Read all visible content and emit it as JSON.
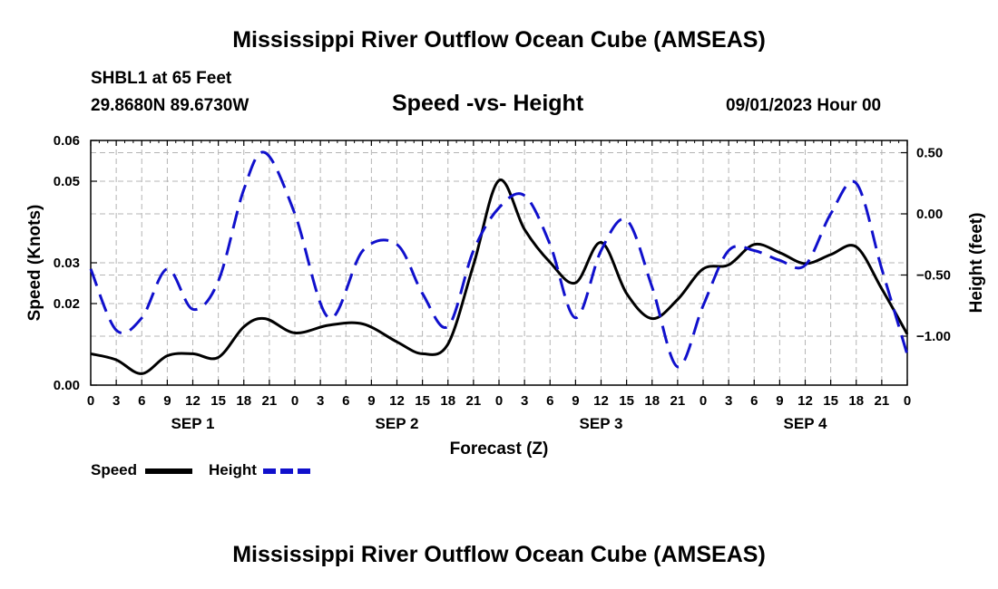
{
  "header": {
    "title": "Mississippi River Outflow Ocean Cube (AMSEAS)",
    "station": "SHBL1 at 65 Feet",
    "coords": "29.8680N  89.6730W",
    "subtitle": "Speed -vs- Height",
    "datetime": "09/01/2023 Hour 00"
  },
  "footer": {
    "title": "Mississippi River Outflow Ocean Cube (AMSEAS)"
  },
  "legend": {
    "speed_label": "Speed",
    "height_label": "Height"
  },
  "colors": {
    "speed": "#000000",
    "height": "#1010cc",
    "grid": "#b4b4b4"
  },
  "chart_data": {
    "type": "line",
    "xlabel": "Forecast (Z)",
    "ylabel": "Speed (Knots)",
    "y2label": "Height (feet)",
    "xlim": [
      0,
      96
    ],
    "ylim": [
      0,
      0.06
    ],
    "y2lim": [
      -1.4,
      0.6
    ],
    "x_ticks": [
      0,
      3,
      6,
      9,
      12,
      15,
      18,
      21,
      24,
      27,
      30,
      33,
      36,
      39,
      42,
      45,
      48,
      51,
      54,
      57,
      60,
      63,
      66,
      69,
      72,
      75,
      78,
      81,
      84,
      87,
      90,
      93,
      96
    ],
    "x_tick_labels": [
      "0",
      "3",
      "6",
      "9",
      "12",
      "15",
      "18",
      "21",
      "0",
      "3",
      "6",
      "9",
      "12",
      "15",
      "18",
      "21",
      "0",
      "3",
      "6",
      "9",
      "12",
      "15",
      "18",
      "21",
      "0",
      "3",
      "6",
      "9",
      "12",
      "15",
      "18",
      "21",
      "0"
    ],
    "day_labels": [
      {
        "text": "SEP 1",
        "x": 12
      },
      {
        "text": "SEP 2",
        "x": 36
      },
      {
        "text": "SEP 3",
        "x": 60
      },
      {
        "text": "SEP 4",
        "x": 84
      }
    ],
    "y_ticks": [
      0.0,
      0.02,
      0.03,
      0.05,
      0.06
    ],
    "y_tick_labels": [
      "0.00",
      "0.02",
      "0.03",
      "0.05",
      "0.06"
    ],
    "y2_ticks": [
      0.5,
      0.0,
      -0.5,
      -1.0
    ],
    "y2_tick_labels": [
      "0.50",
      "0.00",
      "−0.50",
      "−1.00"
    ],
    "series": [
      {
        "name": "Speed",
        "axis": "left",
        "x": [
          0,
          3,
          6,
          9,
          12,
          15,
          18,
          20.5,
          24,
          28,
          32,
          36,
          39,
          42,
          45,
          48,
          51,
          54,
          57,
          60,
          63,
          66,
          69,
          72,
          75,
          78,
          81,
          84,
          87,
          90,
          93,
          96
        ],
        "values": [
          0.0077,
          0.0062,
          0.0028,
          0.0072,
          0.0077,
          0.0068,
          0.0143,
          0.0163,
          0.0128,
          0.0147,
          0.015,
          0.0106,
          0.0077,
          0.0101,
          0.0295,
          0.0502,
          0.0382,
          0.0301,
          0.0251,
          0.035,
          0.0225,
          0.0163,
          0.021,
          0.0285,
          0.0295,
          0.0345,
          0.0325,
          0.0298,
          0.032,
          0.0339,
          0.0236,
          0.0125
        ]
      },
      {
        "name": "Height",
        "axis": "right",
        "x": [
          0,
          3,
          6,
          9,
          12,
          15,
          18,
          20.5,
          24,
          28,
          32,
          36,
          39,
          42,
          45,
          48,
          51,
          54,
          57,
          60,
          63,
          66,
          69,
          72,
          75,
          78,
          81,
          84,
          87,
          90,
          93,
          96
        ],
        "values": [
          -0.45,
          -0.95,
          -0.85,
          -0.45,
          -0.78,
          -0.55,
          0.2,
          0.5,
          0.0,
          -0.85,
          -0.3,
          -0.25,
          -0.65,
          -0.92,
          -0.3,
          0.05,
          0.15,
          -0.25,
          -0.85,
          -0.3,
          -0.05,
          -0.6,
          -1.25,
          -0.75,
          -0.3,
          -0.3,
          -0.38,
          -0.42,
          0.0,
          0.25,
          -0.45,
          -1.15
        ]
      }
    ]
  }
}
